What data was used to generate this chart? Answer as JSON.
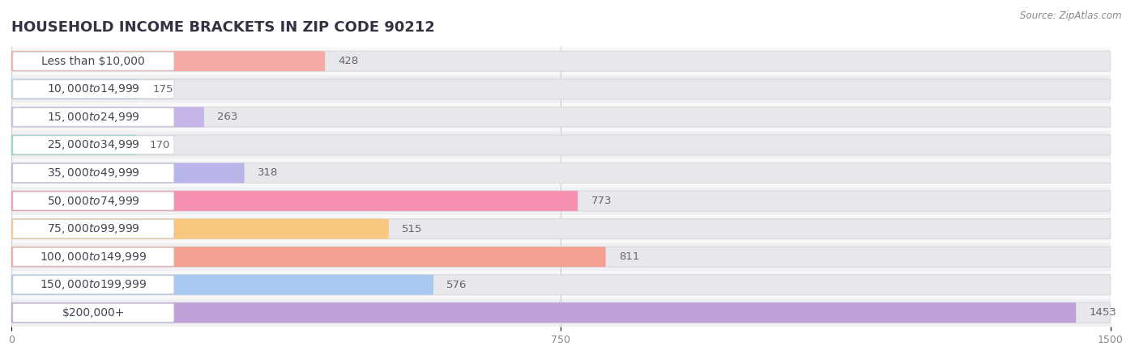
{
  "title": "HOUSEHOLD INCOME BRACKETS IN ZIP CODE 90212",
  "source": "Source: ZipAtlas.com",
  "categories": [
    "Less than $10,000",
    "$10,000 to $14,999",
    "$15,000 to $24,999",
    "$25,000 to $34,999",
    "$35,000 to $49,999",
    "$50,000 to $74,999",
    "$75,000 to $99,999",
    "$100,000 to $149,999",
    "$150,000 to $199,999",
    "$200,000+"
  ],
  "values": [
    428,
    175,
    263,
    170,
    318,
    773,
    515,
    811,
    576,
    1453
  ],
  "bar_colors": [
    "#f4a9a5",
    "#a8d4f0",
    "#c5b5e8",
    "#8ed8cc",
    "#b8b5e8",
    "#f590b0",
    "#f8c880",
    "#f4a090",
    "#a8c8f0",
    "#c0a0d8"
  ],
  "xlim": [
    0,
    1500
  ],
  "xticks": [
    0,
    750,
    1500
  ],
  "bar_bg_color": "#e8e8ec",
  "row_bg_even": "#f8f8f8",
  "row_bg_odd": "#f0f0f4",
  "title_fontsize": 13,
  "label_fontsize": 10,
  "value_fontsize": 9.5
}
